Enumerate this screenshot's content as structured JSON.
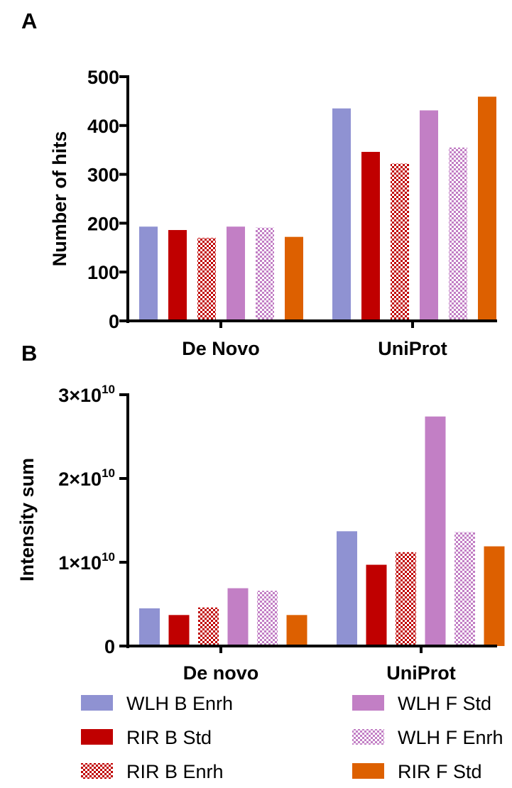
{
  "colors": {
    "wlh_b": "#8f92d2",
    "rir_b": "#c00000",
    "wlh_f": "#c27fc5",
    "rir_f": "#dd6000",
    "axis": "#000000"
  },
  "legend": [
    {
      "label": "WLH B Enrh",
      "color": "#8f92d2",
      "pattern": "solid"
    },
    {
      "label": "WLH F Std",
      "color": "#c27fc5",
      "pattern": "solid"
    },
    {
      "label": "RIR B Std",
      "color": "#c00000",
      "pattern": "solid"
    },
    {
      "label": "WLH F Enrh",
      "color": "#c27fc5",
      "pattern": "checker"
    },
    {
      "label": "RIR B Enrh",
      "color": "#c00000",
      "pattern": "checker"
    },
    {
      "label": "RIR F Std",
      "color": "#dd6000",
      "pattern": "solid"
    }
  ],
  "chart_data": [
    {
      "panel": "A",
      "type": "bar",
      "ylabel": "Number of hits",
      "ylim": [
        0,
        500
      ],
      "yticks": [
        "0",
        "100",
        "200",
        "300",
        "400",
        "500"
      ],
      "categories": [
        "De Novo",
        "UniProt"
      ],
      "series": [
        {
          "name": "WLH B Enrh",
          "values": [
            193,
            435
          ]
        },
        {
          "name": "RIR B Std",
          "values": [
            186,
            346
          ]
        },
        {
          "name": "RIR B Enrh",
          "values": [
            170,
            322
          ]
        },
        {
          "name": "WLH F Std",
          "values": [
            193,
            431
          ]
        },
        {
          "name": "WLH F Enrh",
          "values": [
            191,
            355
          ]
        },
        {
          "name": "RIR F Std",
          "values": [
            172,
            459
          ]
        }
      ]
    },
    {
      "panel": "B",
      "type": "bar",
      "ylabel": "Intensity sum",
      "ylim": [
        0,
        30000000000
      ],
      "yticks": [
        {
          "base": "0",
          "exp": ""
        },
        {
          "base": "1×10",
          "exp": "10"
        },
        {
          "base": "2×10",
          "exp": "10"
        },
        {
          "base": "3×10",
          "exp": "10"
        }
      ],
      "categories": [
        "De novo",
        "UniProt"
      ],
      "series": [
        {
          "name": "WLH B Enrh",
          "values": [
            4500000000,
            13700000000
          ]
        },
        {
          "name": "RIR B Std",
          "values": [
            3700000000,
            9700000000
          ]
        },
        {
          "name": "RIR B Enrh",
          "values": [
            4600000000,
            11200000000
          ]
        },
        {
          "name": "WLH F Std",
          "values": [
            6900000000,
            27400000000
          ]
        },
        {
          "name": "WLH F Enrh",
          "values": [
            6600000000,
            13600000000
          ]
        },
        {
          "name": "RIR F Std",
          "values": [
            3700000000,
            11900000000
          ]
        }
      ]
    }
  ]
}
